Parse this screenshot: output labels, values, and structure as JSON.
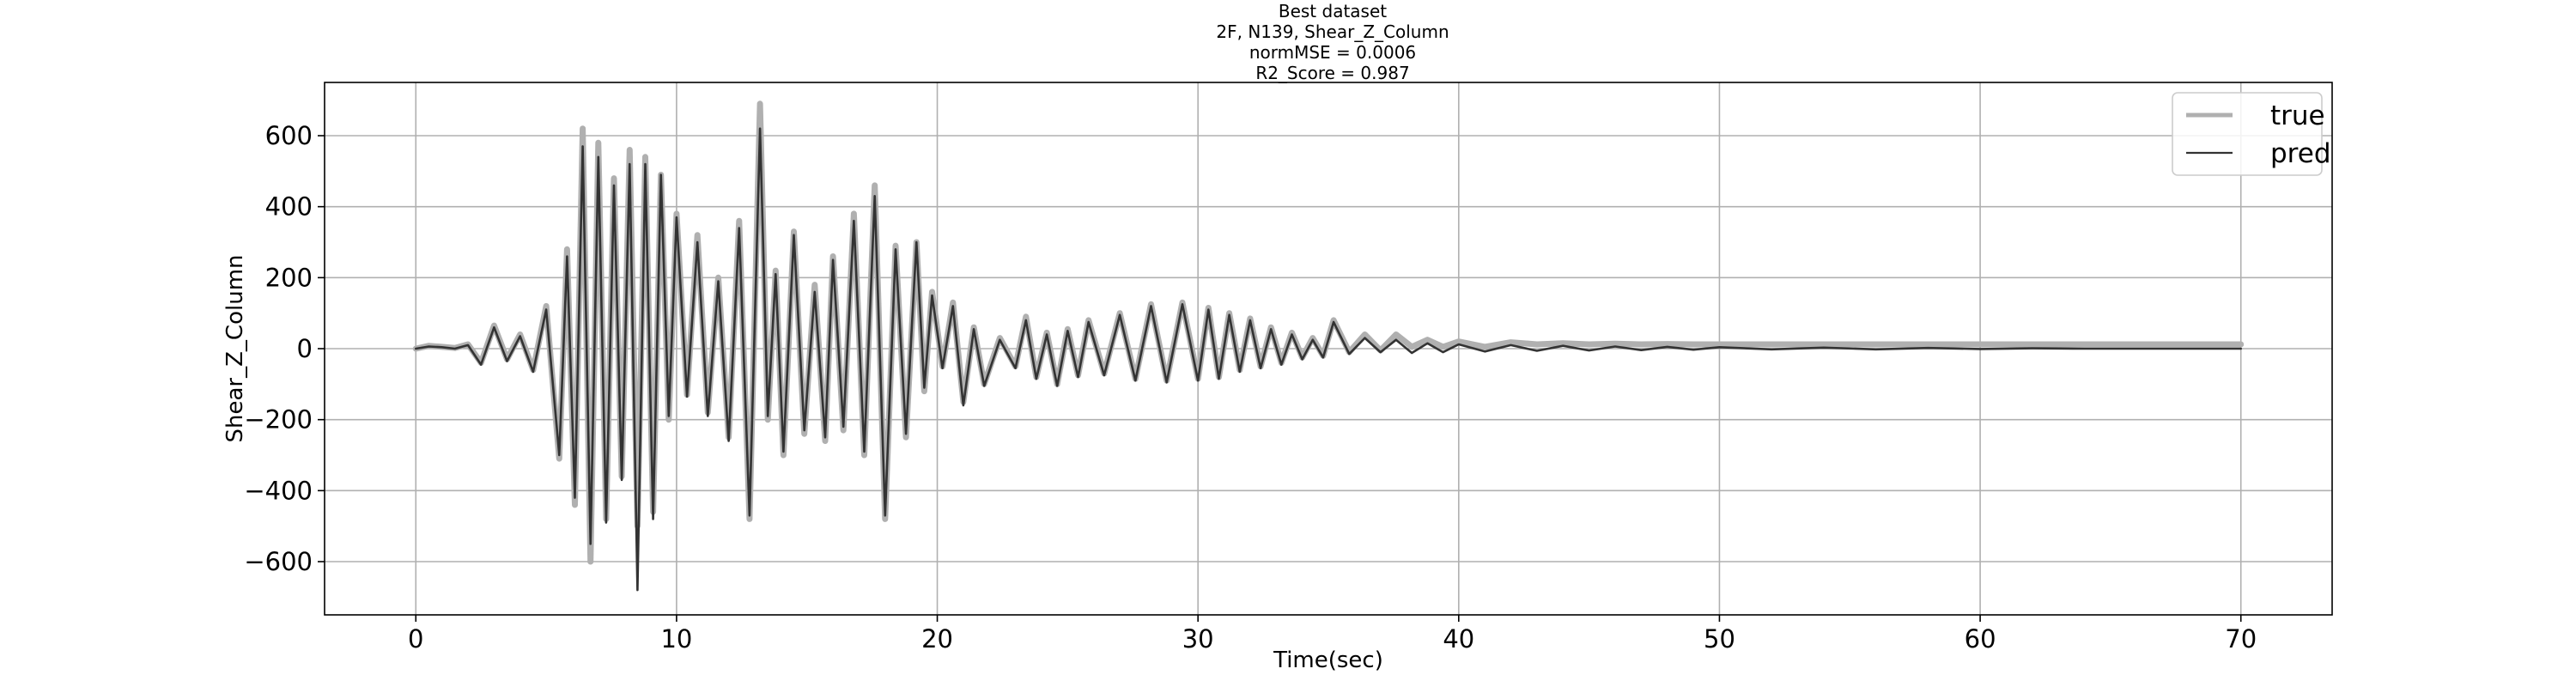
{
  "chart_data": {
    "type": "line",
    "title_lines": [
      "Best dataset",
      "2F, N139, Shear_Z_Column",
      "normMSE = 0.0006",
      "R2_Score = 0.987"
    ],
    "xlabel": "Time(sec)",
    "ylabel": "Shear_Z_Column",
    "xlim": [
      -3.5,
      73.5
    ],
    "ylim": [
      -750,
      750
    ],
    "xticks": [
      0,
      10,
      20,
      30,
      40,
      50,
      60,
      70
    ],
    "yticks": [
      -600,
      -400,
      -200,
      0,
      200,
      400,
      600
    ],
    "ytick_labels": [
      "−600",
      "−400",
      "−200",
      "0",
      "200",
      "400",
      "600"
    ],
    "grid": true,
    "legend_position": "top-right",
    "series": [
      {
        "name": "true",
        "color": "#b0b0b0",
        "t": [
          0,
          0.5,
          1,
          1.5,
          2,
          2.5,
          3,
          3.5,
          4,
          4.5,
          5,
          5.5,
          5.8,
          6.1,
          6.4,
          6.7,
          7.0,
          7.3,
          7.6,
          7.9,
          8.2,
          8.5,
          8.8,
          9.1,
          9.4,
          9.7,
          10.0,
          10.4,
          10.8,
          11.2,
          11.6,
          12.0,
          12.4,
          12.8,
          13.2,
          13.5,
          13.8,
          14.1,
          14.5,
          14.9,
          15.3,
          15.7,
          16.0,
          16.4,
          16.8,
          17.2,
          17.6,
          18.0,
          18.4,
          18.8,
          19.2,
          19.5,
          19.8,
          20.2,
          20.6,
          21.0,
          21.4,
          21.8,
          22.4,
          23.0,
          23.4,
          23.8,
          24.2,
          24.6,
          25.0,
          25.4,
          25.8,
          26.4,
          27.0,
          27.6,
          28.2,
          28.8,
          29.4,
          30.0,
          30.4,
          30.8,
          31.2,
          31.6,
          32.0,
          32.4,
          32.8,
          33.2,
          33.6,
          34.0,
          34.4,
          34.8,
          35.2,
          35.8,
          36.4,
          37.0,
          37.6,
          38.2,
          38.8,
          39.4,
          40.0,
          41,
          42,
          43,
          44,
          45,
          46,
          47,
          48,
          49,
          50,
          52,
          54,
          56,
          58,
          60,
          62,
          64,
          66,
          68,
          70
        ],
        "v": [
          0,
          8,
          5,
          2,
          12,
          -40,
          65,
          -30,
          40,
          -60,
          120,
          -310,
          280,
          -440,
          620,
          -600,
          580,
          -480,
          480,
          -360,
          560,
          -500,
          540,
          -460,
          490,
          -200,
          380,
          -130,
          320,
          -180,
          200,
          -250,
          360,
          -480,
          690,
          -200,
          220,
          -300,
          330,
          -240,
          180,
          -260,
          260,
          -230,
          380,
          -300,
          460,
          -480,
          290,
          -250,
          300,
          -120,
          160,
          -50,
          130,
          -150,
          60,
          -100,
          30,
          -50,
          90,
          -80,
          45,
          -100,
          55,
          -75,
          80,
          -70,
          100,
          -85,
          125,
          -90,
          130,
          -85,
          115,
          -80,
          100,
          -60,
          85,
          -50,
          60,
          -40,
          45,
          -25,
          30,
          -20,
          80,
          -10,
          40,
          -5,
          40,
          5,
          25,
          5,
          20,
          5,
          18,
          12,
          15,
          12,
          14,
          12,
          13,
          12,
          12,
          12,
          12,
          12,
          12,
          12,
          12,
          12,
          12,
          12,
          12,
          12,
          12,
          12,
          12
        ]
      },
      {
        "name": "pred",
        "color": "#333333",
        "t": [
          0,
          0.5,
          1,
          1.5,
          2,
          2.5,
          3,
          3.5,
          4,
          4.5,
          5,
          5.5,
          5.8,
          6.1,
          6.4,
          6.7,
          7.0,
          7.3,
          7.6,
          7.9,
          8.2,
          8.5,
          8.8,
          9.1,
          9.4,
          9.7,
          10.0,
          10.4,
          10.8,
          11.2,
          11.6,
          12.0,
          12.4,
          12.8,
          13.2,
          13.5,
          13.8,
          14.1,
          14.5,
          14.9,
          15.3,
          15.7,
          16.0,
          16.4,
          16.8,
          17.2,
          17.6,
          18.0,
          18.4,
          18.8,
          19.2,
          19.5,
          19.8,
          20.2,
          20.6,
          21.0,
          21.4,
          21.8,
          22.4,
          23.0,
          23.4,
          23.8,
          24.2,
          24.6,
          25.0,
          25.4,
          25.8,
          26.4,
          27.0,
          27.6,
          28.2,
          28.8,
          29.4,
          30.0,
          30.4,
          30.8,
          31.2,
          31.6,
          32.0,
          32.4,
          32.8,
          33.2,
          33.6,
          34.0,
          34.4,
          34.8,
          35.2,
          35.8,
          36.4,
          37.0,
          37.6,
          38.2,
          38.8,
          39.4,
          40.0,
          41,
          42,
          43,
          44,
          45,
          46,
          47,
          48,
          49,
          50,
          52,
          54,
          56,
          58,
          60,
          62,
          64,
          66,
          68,
          70
        ],
        "v": [
          0,
          6,
          4,
          0,
          10,
          -45,
          60,
          -35,
          35,
          -65,
          110,
          -300,
          260,
          -420,
          570,
          -550,
          540,
          -490,
          460,
          -370,
          520,
          -680,
          520,
          -480,
          490,
          -190,
          370,
          -135,
          300,
          -190,
          190,
          -260,
          340,
          -470,
          620,
          -190,
          210,
          -290,
          320,
          -230,
          160,
          -250,
          250,
          -220,
          360,
          -290,
          430,
          -470,
          280,
          -240,
          300,
          -110,
          150,
          -55,
          120,
          -160,
          55,
          -105,
          25,
          -55,
          80,
          -85,
          40,
          -105,
          50,
          -80,
          75,
          -75,
          95,
          -90,
          120,
          -95,
          125,
          -90,
          110,
          -85,
          95,
          -65,
          80,
          -55,
          55,
          -45,
          40,
          -30,
          25,
          -25,
          75,
          -15,
          30,
          -10,
          25,
          -12,
          15,
          -10,
          12,
          -8,
          10,
          -6,
          8,
          -5,
          6,
          -4,
          5,
          -3,
          4,
          -2,
          3,
          -2,
          2,
          -1,
          1,
          0,
          0,
          0,
          0,
          0,
          0,
          0,
          0
        ]
      }
    ]
  }
}
